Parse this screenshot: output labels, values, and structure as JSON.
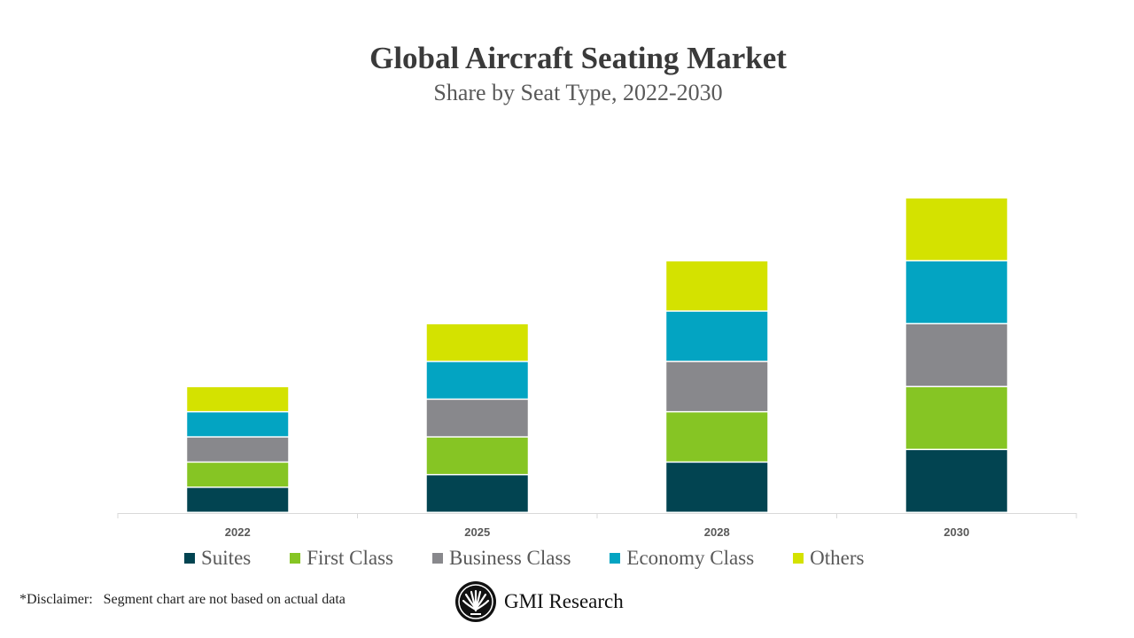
{
  "chart_data": {
    "type": "bar",
    "stacked": true,
    "title": "Global Aircraft Seating Market",
    "subtitle": "Share by Seat Type, 2022-2030",
    "categories": [
      "2022",
      "2025",
      "2028",
      "2030"
    ],
    "series": [
      {
        "name": "Suites",
        "color": "#024451",
        "values": [
          2,
          3,
          4,
          5
        ]
      },
      {
        "name": "First Class",
        "color": "#86c524",
        "values": [
          2,
          3,
          4,
          5
        ]
      },
      {
        "name": "Business Class",
        "color": "#88888c",
        "values": [
          2,
          3,
          4,
          5
        ]
      },
      {
        "name": "Economy Class",
        "color": "#03a4c2",
        "values": [
          2,
          3,
          4,
          5
        ]
      },
      {
        "name": "Others",
        "color": "#d4e200",
        "values": [
          2,
          3,
          4,
          5
        ]
      }
    ],
    "ylim": [
      0,
      25
    ],
    "y_axis_visible": false,
    "grid": false,
    "legend": "bottom"
  },
  "footer": {
    "disclaimer": "*Disclaimer:   Segment chart are not based on actual data",
    "brand": "GMI Research"
  }
}
